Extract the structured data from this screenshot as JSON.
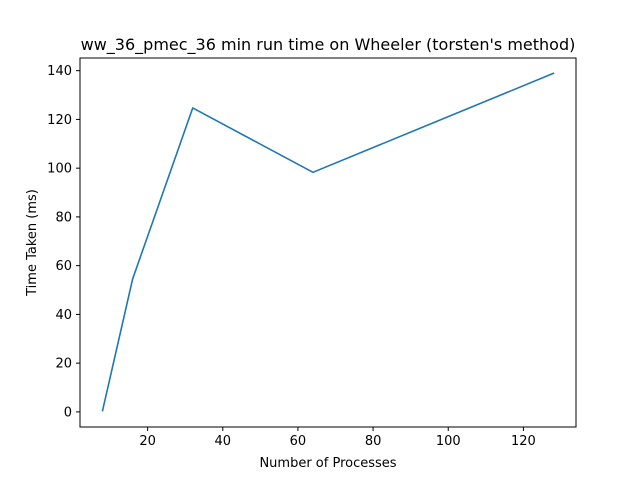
{
  "chart_data": {
    "type": "line",
    "title": "ww_36_pmec_36 min run time on Wheeler (torsten's method)",
    "xlabel": "Number of Processes",
    "ylabel": "Time Taken (ms)",
    "xlim": [
      2.0,
      134.0
    ],
    "ylim": [
      -6.2,
      145.2
    ],
    "xticks": [
      20,
      40,
      60,
      80,
      100,
      120
    ],
    "yticks": [
      0,
      20,
      40,
      60,
      80,
      100,
      120,
      140
    ],
    "grid": false,
    "series": [
      {
        "color": "#1f77b4",
        "x": [
          8,
          16,
          32,
          64,
          128
        ],
        "y": [
          0.5,
          54.5,
          124.7,
          98.3,
          138.9
        ]
      }
    ]
  }
}
